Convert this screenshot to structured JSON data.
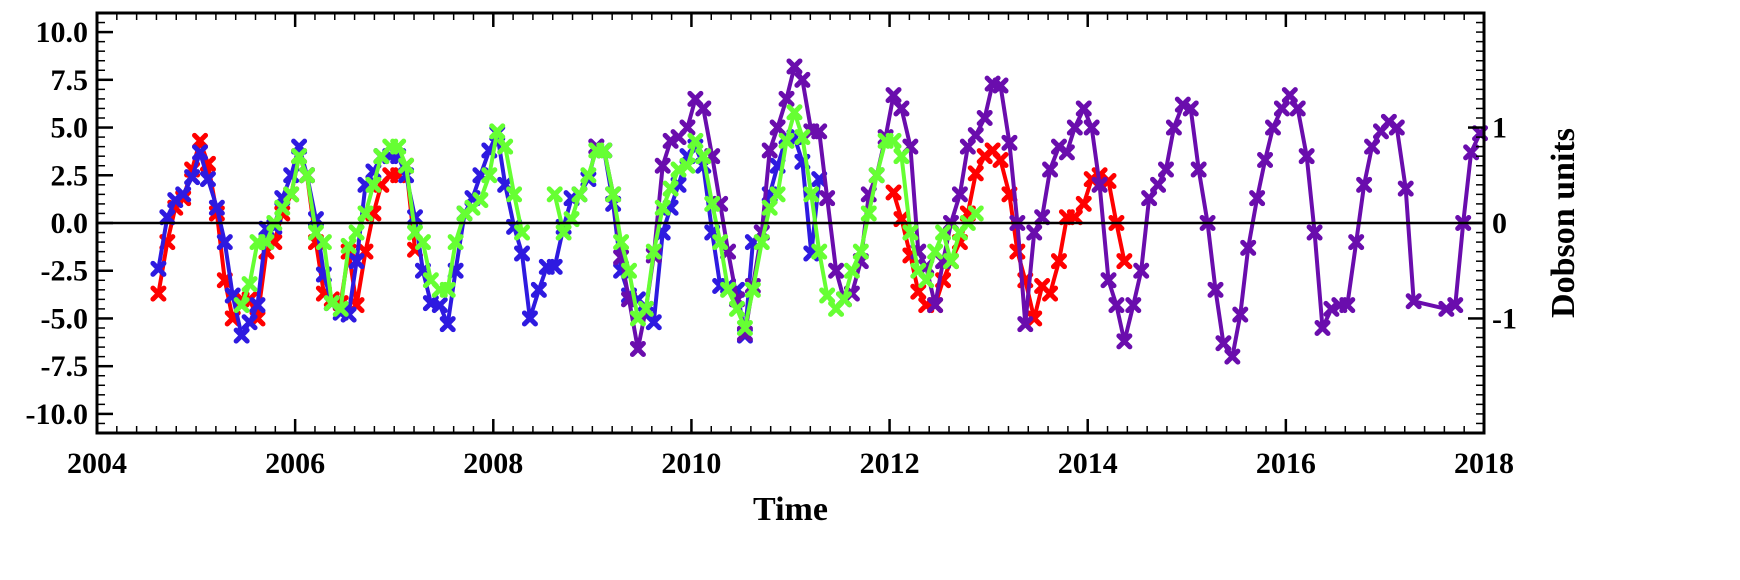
{
  "chart_data": {
    "type": "line",
    "title": "",
    "xlabel": "Time",
    "ylabel": "",
    "y2label": "Dobson units",
    "xlim": [
      2004,
      2018
    ],
    "ylim": [
      -11,
      11
    ],
    "y2lim": [
      -2.2,
      2.2
    ],
    "xticks": [
      2004,
      2006,
      2008,
      2010,
      2012,
      2014,
      2016,
      2018
    ],
    "xtick_labels": [
      "2004",
      "2006",
      "2008",
      "2010",
      "2012",
      "2014",
      "2016",
      "2018"
    ],
    "yticks": [
      10,
      7.5,
      5,
      2.5,
      0,
      -2.5,
      -5,
      -7.5,
      -10
    ],
    "ytick_labels": [
      "10.0",
      "7.5",
      "5.0",
      "2.5",
      "0.0",
      "-2.5",
      "-5.0",
      "-7.5",
      "-10.0"
    ],
    "y2ticks": [
      1,
      0,
      -1
    ],
    "y2tick_labels": [
      "1",
      "0",
      "-1"
    ],
    "zero_line": true,
    "grid": false,
    "legend": "none",
    "series": [
      {
        "color": "#ff0000",
        "x": [
          2004.62,
          2004.71,
          2004.79,
          2004.87,
          2004.96,
          2005.04,
          2005.12,
          2005.21,
          2005.29,
          2005.37,
          2005.46,
          2005.54,
          2005.62,
          2005.71,
          2005.79,
          2005.87,
          2005.96,
          2006.04,
          2006.12,
          2006.21,
          2006.29,
          2006.37,
          2006.46,
          2006.54,
          2006.62,
          2006.71,
          2006.79,
          2006.87,
          2006.96,
          2007.04,
          2007.12,
          2007.21
        ],
        "values": [
          -3.7,
          -1.0,
          0.8,
          1.3,
          2.8,
          4.3,
          3.1,
          0.5,
          -3.0,
          -5.0,
          -4.0,
          -4.0,
          -5.0,
          -1.5,
          -1.0,
          0.5,
          1.5,
          3.5,
          2.5,
          -1.0,
          -3.7,
          -4.0,
          -4.2,
          -1.5,
          -4.3,
          -1.5,
          0.5,
          2.0,
          2.5,
          2.5,
          3.0,
          -1.4
        ]
      },
      {
        "color": "#ff0000",
        "x": [
          2012.04,
          2012.12,
          2012.21,
          2012.29,
          2012.37,
          2012.46,
          2012.54,
          2012.62,
          2012.71,
          2012.79,
          2012.87,
          2012.96,
          2013.04,
          2013.12,
          2013.21,
          2013.29,
          2013.37,
          2013.46,
          2013.54,
          2013.62,
          2013.71,
          2013.79,
          2013.87,
          2013.96,
          2014.04,
          2014.12,
          2014.21,
          2014.29,
          2014.37
        ],
        "values": [
          1.6,
          0.2,
          -1.7,
          -3.6,
          -4.3,
          -4.3,
          -3.0,
          -2.0,
          -1.0,
          0.5,
          2.6,
          3.5,
          3.8,
          3.3,
          1.5,
          -1.5,
          -3.0,
          -5.0,
          -3.3,
          -3.7,
          -2.0,
          0.3,
          0.3,
          1.0,
          2.3,
          2.5,
          2.2,
          0.0,
          -2.0
        ]
      },
      {
        "color": "#2e1ae0",
        "x": [
          2004.62,
          2004.71,
          2004.79,
          2004.87,
          2004.96,
          2005.04,
          2005.12,
          2005.21,
          2005.29,
          2005.37,
          2005.46,
          2005.54,
          2005.62,
          2005.71,
          2005.79,
          2005.87,
          2005.96,
          2006.04,
          2006.12,
          2006.21,
          2006.29,
          2006.37,
          2006.46,
          2006.54,
          2006.62,
          2006.71,
          2006.79,
          2006.87,
          2006.96,
          2007.04,
          2007.12,
          2007.21,
          2007.29,
          2007.37,
          2007.46,
          2007.54,
          2007.62,
          2007.71,
          2007.79,
          2007.87,
          2007.96,
          2008.04,
          2008.12,
          2008.21,
          2008.29,
          2008.37,
          2008.46,
          2008.54,
          2008.62,
          2008.71,
          2008.79,
          2008.87,
          2008.96,
          2009.04,
          2009.12,
          2009.21,
          2009.29,
          2009.37,
          2009.46,
          2009.54,
          2009.62,
          2009.71,
          2009.79,
          2009.87,
          2009.96,
          2010.04,
          2010.12,
          2010.21,
          2010.29,
          2010.37,
          2010.46,
          2010.54,
          2010.62,
          2010.71,
          2010.79,
          2010.87,
          2010.96,
          2011.04,
          2011.12,
          2011.21,
          2011.29
        ],
        "values": [
          -2.4,
          0.3,
          1.2,
          1.5,
          2.4,
          3.7,
          2.3,
          0.8,
          -1.0,
          -3.8,
          -5.9,
          -5.2,
          -4.3,
          -0.3,
          -0.2,
          1.3,
          2.5,
          4.0,
          2.5,
          0.2,
          -2.7,
          -4.2,
          -4.7,
          -4.8,
          -2.0,
          2.0,
          2.7,
          3.5,
          3.5,
          3.5,
          2.5,
          0.3,
          -2.5,
          -4.2,
          -4.3,
          -5.3,
          -2.5,
          0.5,
          1.3,
          2.5,
          3.8,
          4.7,
          2.0,
          -0.2,
          -1.6,
          -5.0,
          -3.5,
          -2.3,
          -2.3,
          -0.2,
          1.3,
          1.5,
          2.3,
          4.0,
          3.8,
          1.0,
          -2.5,
          -3.8,
          -4.0,
          -4.8,
          -5.2,
          -0.5,
          0.8,
          2.0,
          3.5,
          4.0,
          3.0,
          -0.5,
          -3.3,
          -3.3,
          -3.5,
          -5.9,
          -1.0,
          -0.5,
          1.5,
          3.0,
          4.5,
          4.5,
          3.2,
          -1.6,
          2.3
        ]
      },
      {
        "color": "#6a0dad",
        "x": [
          2009.04,
          2009.12,
          2009.21,
          2009.29,
          2009.37,
          2009.46,
          2009.54,
          2009.62,
          2009.71,
          2009.79,
          2009.87,
          2009.96,
          2010.04,
          2010.12,
          2010.21,
          2010.29,
          2010.37,
          2010.46,
          2010.54,
          2010.62,
          2010.71,
          2010.79,
          2010.87,
          2010.96,
          2011.04,
          2011.12,
          2011.21,
          2011.29,
          2011.37,
          2011.46,
          2011.54,
          2011.62,
          2011.71,
          2011.79,
          2011.87,
          2011.96,
          2012.04,
          2012.12,
          2012.21,
          2012.29,
          2012.37,
          2012.46,
          2012.54,
          2012.62,
          2012.71,
          2012.79,
          2012.87,
          2012.96,
          2013.04,
          2013.12,
          2013.21,
          2013.29,
          2013.37,
          2013.46,
          2013.54,
          2013.62,
          2013.71,
          2013.79,
          2013.87,
          2013.96,
          2014.04,
          2014.12,
          2014.21,
          2014.29,
          2014.37,
          2014.46,
          2014.54,
          2014.62,
          2014.71,
          2014.79,
          2014.87,
          2014.96,
          2015.04,
          2015.12,
          2015.21,
          2015.29,
          2015.37,
          2015.46,
          2015.54,
          2015.62,
          2015.71,
          2015.79,
          2015.87,
          2015.96,
          2016.04,
          2016.12,
          2016.21,
          2016.29,
          2016.37,
          2016.46,
          2016.54,
          2016.62,
          2016.71,
          2016.79,
          2016.87,
          2016.96,
          2017.04,
          2017.12,
          2017.21,
          2017.29,
          2017.62,
          2017.71,
          2017.79,
          2017.87,
          2017.96
        ],
        "values": [
          4.0,
          3.8,
          1.5,
          -1.8,
          -4.0,
          -6.6,
          -4.5,
          -1.7,
          3.0,
          4.3,
          4.5,
          5.0,
          6.5,
          6.0,
          3.5,
          1.0,
          -1.5,
          -4.0,
          -5.8,
          -3.3,
          -0.5,
          3.8,
          5.0,
          6.5,
          8.2,
          7.5,
          4.8,
          4.8,
          1.3,
          -2.5,
          -4.0,
          -3.7,
          -2.0,
          1.5,
          2.5,
          4.5,
          6.7,
          6.0,
          4.0,
          -1.5,
          -2.3,
          -4.3,
          -2.0,
          0.0,
          1.5,
          4.0,
          4.6,
          5.5,
          7.3,
          7.2,
          4.2,
          0.0,
          -5.3,
          -0.5,
          0.3,
          2.8,
          4.0,
          3.7,
          5.0,
          6.0,
          5.0,
          2.0,
          -3.0,
          -4.3,
          -6.2,
          -4.3,
          -2.5,
          1.3,
          2.0,
          2.8,
          5.0,
          6.2,
          6.0,
          2.8,
          0.0,
          -3.5,
          -6.3,
          -7.0,
          -4.8,
          -1.3,
          1.3,
          3.3,
          5.0,
          6.0,
          6.7,
          6.0,
          3.5,
          -0.5,
          -5.5,
          -4.5,
          -4.3,
          -4.3,
          -1.0,
          2.0,
          4.0,
          4.8,
          5.3,
          5.0,
          1.8,
          -4.1,
          -4.5,
          -4.3,
          0.0,
          3.7,
          4.7
        ]
      },
      {
        "color": "#66ff33",
        "x": [
          2005.46,
          2005.54,
          2005.62,
          2005.71,
          2005.79,
          2005.87,
          2005.96,
          2006.04,
          2006.12,
          2006.21,
          2006.29,
          2006.37,
          2006.46,
          2006.54,
          2006.62,
          2006.71,
          2006.79,
          2006.87,
          2006.96,
          2007.04,
          2007.12,
          2007.21,
          2007.29,
          2007.37,
          2007.46,
          2007.54,
          2007.62,
          2007.71,
          2007.79,
          2007.87,
          2007.96,
          2008.04,
          2008.12,
          2008.21,
          2008.29
        ],
        "values": [
          -4.3,
          -3.2,
          -1.0,
          -1.0,
          0.0,
          0.8,
          1.5,
          3.5,
          2.5,
          -0.5,
          -1.0,
          -4.2,
          -4.5,
          -1.2,
          -0.5,
          0.5,
          2.0,
          3.5,
          4.0,
          4.0,
          3.0,
          -0.5,
          -1.0,
          -3.0,
          -3.5,
          -3.5,
          -1.0,
          0.5,
          0.8,
          1.2,
          2.5,
          4.8,
          4.0,
          1.5,
          -0.5
        ]
      },
      {
        "color": "#66ff33",
        "x": [
          2008.62,
          2008.71,
          2008.79,
          2008.87,
          2008.96,
          2009.04,
          2009.12,
          2009.21,
          2009.29,
          2009.37,
          2009.46,
          2009.54,
          2009.62,
          2009.71,
          2009.79,
          2009.87,
          2009.96,
          2010.04,
          2010.12,
          2010.21,
          2010.29,
          2010.37,
          2010.46,
          2010.54,
          2010.62,
          2010.71,
          2010.79,
          2010.87,
          2010.96,
          2011.04,
          2011.12,
          2011.21,
          2011.29,
          2011.37,
          2011.46,
          2011.54,
          2011.62,
          2011.71,
          2011.79,
          2011.87,
          2011.96,
          2012.04,
          2012.12,
          2012.21,
          2012.29,
          2012.37,
          2012.46,
          2012.54,
          2012.62,
          2012.71,
          2012.79,
          2012.87
        ],
        "values": [
          1.5,
          -0.5,
          0.2,
          1.5,
          2.5,
          3.8,
          3.8,
          1.5,
          -1.0,
          -2.5,
          -5.0,
          -4.5,
          -1.5,
          0.8,
          1.8,
          2.8,
          3.0,
          4.3,
          3.5,
          1.0,
          -1.0,
          -3.5,
          -4.5,
          -5.5,
          -3.5,
          -1.0,
          0.8,
          1.5,
          4.3,
          5.8,
          4.5,
          1.5,
          -1.5,
          -3.8,
          -4.5,
          -4.0,
          -2.5,
          -1.5,
          0.5,
          2.5,
          4.3,
          4.3,
          3.5,
          -0.5,
          -2.5,
          -3.0,
          -1.5,
          -0.5,
          -2.0,
          -0.5,
          0.0,
          0.5
        ]
      }
    ]
  }
}
